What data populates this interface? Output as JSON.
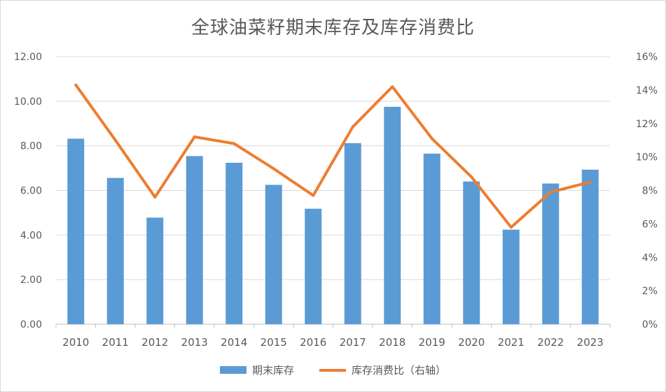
{
  "chart_data": {
    "type": "bar",
    "title": "全球油菜籽期末库存及库存消费比",
    "categories": [
      "2010",
      "2011",
      "2012",
      "2013",
      "2014",
      "2015",
      "2016",
      "2017",
      "2018",
      "2019",
      "2020",
      "2021",
      "2022",
      "2023"
    ],
    "series": [
      {
        "name": "期末库存",
        "type": "bar",
        "axis": "left",
        "color": "#5b9bd5",
        "values": [
          8.32,
          6.56,
          4.78,
          7.54,
          7.24,
          6.25,
          5.18,
          8.12,
          9.75,
          7.65,
          6.4,
          4.24,
          6.31,
          6.93
        ]
      },
      {
        "name": "库存消费比（右轴）",
        "type": "line",
        "axis": "right",
        "color": "#ed7d31",
        "values": [
          14.3,
          11.0,
          7.6,
          11.2,
          10.8,
          9.3,
          7.7,
          11.8,
          14.2,
          11.1,
          8.8,
          5.8,
          7.9,
          8.5
        ]
      }
    ],
    "y_left": {
      "min": 0,
      "max": 12,
      "ticks": [
        "0.00",
        "2.00",
        "4.00",
        "6.00",
        "8.00",
        "10.00",
        "12.00"
      ]
    },
    "y_right": {
      "min": 0,
      "max": 16,
      "ticks": [
        "0%",
        "2%",
        "4%",
        "6%",
        "8%",
        "10%",
        "12%",
        "14%",
        "16%"
      ]
    },
    "grid": true,
    "legend_position": "bottom"
  }
}
